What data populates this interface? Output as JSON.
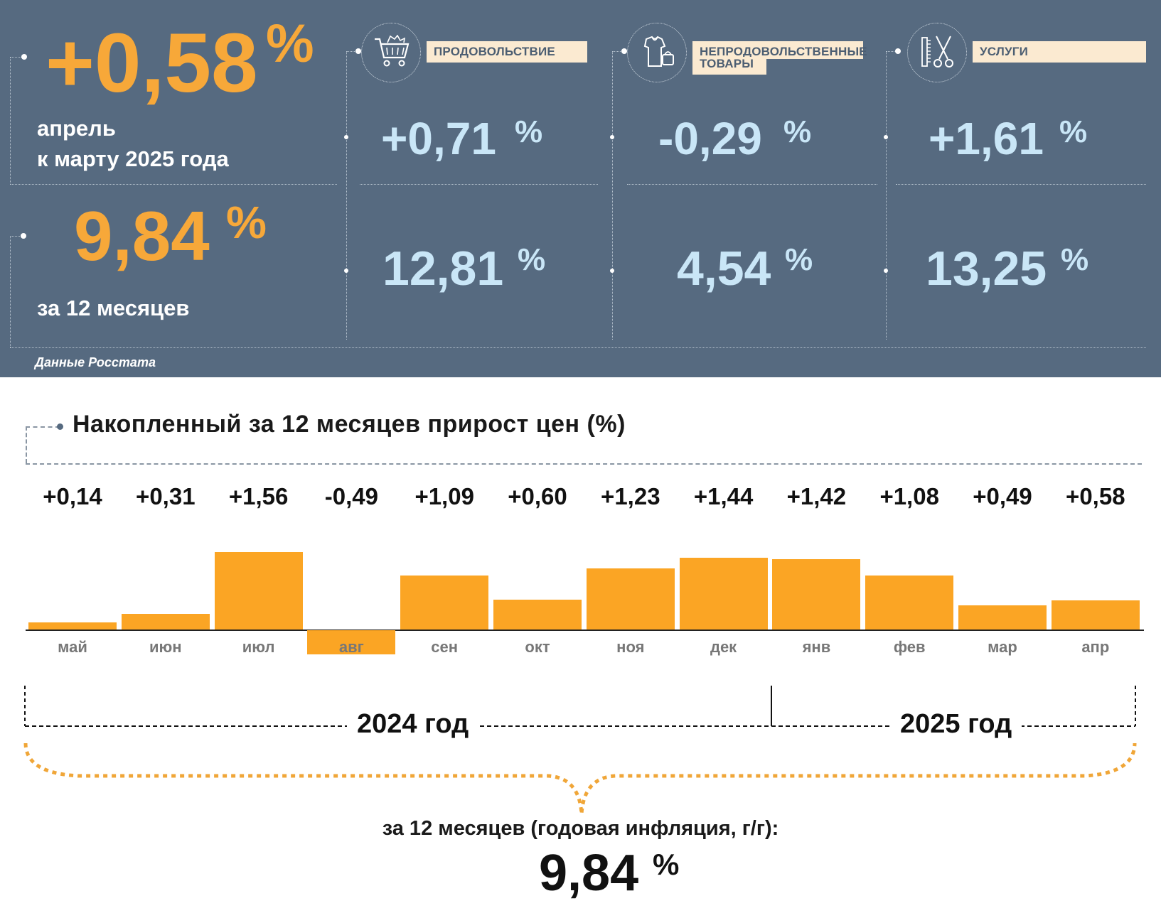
{
  "header": {
    "monthly": {
      "value": "+0,58",
      "pct": "%",
      "caption_line1": "апрель",
      "caption_line2": "к марту 2025 года"
    },
    "annual": {
      "value": "9,84",
      "pct": "%",
      "caption": "за 12 месяцев"
    },
    "categories": [
      {
        "label": "ПРОДОВОЛЬСТВИЕ",
        "icon": "shopping-cart-icon",
        "monthly": "+0,71",
        "annual": "12,81",
        "pct": "%"
      },
      {
        "label_line1": "НЕПРОДОВОЛЬСТВЕННЫЕ",
        "label_line2": "ТОВАРЫ",
        "icon": "clothing-bag-icon",
        "monthly": "-0,29",
        "annual": "4,54",
        "pct": "%"
      },
      {
        "label": "УСЛУГИ",
        "icon": "comb-scissors-icon",
        "monthly": "+1,61",
        "annual": "13,25",
        "pct": "%"
      }
    ],
    "source": "Данные Росстата"
  },
  "colors": {
    "panel_bg": "#566a80",
    "accent_orange": "#f7a839",
    "value_blue": "#c9e6f7",
    "label_bg": "#fbead1",
    "bar_orange": "#fba524"
  },
  "chart_data": {
    "type": "bar",
    "title": "Накопленный за 12 месяцев прирост цен (%)",
    "categories": [
      "май",
      "июн",
      "июл",
      "авг",
      "сен",
      "окт",
      "ноя",
      "дек",
      "янв",
      "фев",
      "мар",
      "апр"
    ],
    "values": [
      0.14,
      0.31,
      1.56,
      -0.49,
      1.09,
      0.6,
      1.23,
      1.44,
      1.42,
      1.08,
      0.49,
      0.58
    ],
    "value_labels": [
      "+0,14",
      "+0,31",
      "+1,56",
      "-0,49",
      "+1,09",
      "+0,60",
      "+1,23",
      "+1,44",
      "+1,42",
      "+1,08",
      "+0,49",
      "+0,58"
    ],
    "years": [
      "2024 год",
      "2025 год"
    ],
    "summary_label": "за 12 месяцев (годовая инфляция, г/г):",
    "summary_value": "9,84",
    "summary_pct": "%"
  }
}
